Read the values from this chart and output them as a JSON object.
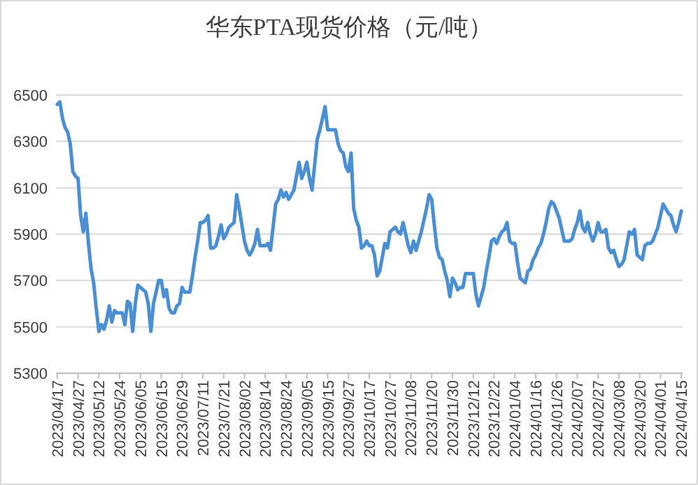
{
  "chart_data": {
    "type": "line",
    "title": "华东PTA现货价格（元/吨）",
    "ylim": [
      5300,
      6500
    ],
    "yticks": [
      5300,
      5500,
      5700,
      5900,
      6100,
      6300,
      6500
    ],
    "grid": "y",
    "color": "#4a8fd4",
    "categories": [
      "2023/04/17",
      null,
      null,
      null,
      null,
      null,
      null,
      null,
      "2023/04/27",
      null,
      null,
      null,
      null,
      null,
      null,
      null,
      "2023/05/12",
      null,
      null,
      null,
      null,
      null,
      null,
      null,
      "2023/05/24",
      null,
      null,
      null,
      null,
      null,
      null,
      null,
      "2023/06/05",
      null,
      null,
      null,
      null,
      null,
      null,
      null,
      "2023/06/15",
      null,
      null,
      null,
      null,
      null,
      null,
      null,
      "2023/06/29",
      null,
      null,
      null,
      null,
      null,
      null,
      null,
      "2023/07/11",
      null,
      null,
      null,
      null,
      null,
      null,
      null,
      "2023/07/21",
      null,
      null,
      null,
      null,
      null,
      null,
      null,
      "2023/08/02",
      null,
      null,
      null,
      null,
      null,
      null,
      null,
      "2023/08/14",
      null,
      null,
      null,
      null,
      null,
      null,
      null,
      "2023/08/24",
      null,
      null,
      null,
      null,
      null,
      null,
      null,
      "2023/09/05",
      null,
      null,
      null,
      null,
      null,
      null,
      null,
      "2023/09/15",
      null,
      null,
      null,
      null,
      null,
      null,
      null,
      "2023/09/27",
      null,
      null,
      null,
      null,
      null,
      null,
      null,
      "2023/10/17",
      null,
      null,
      null,
      null,
      null,
      null,
      null,
      "2023/10/27",
      null,
      null,
      null,
      null,
      null,
      null,
      null,
      "2023/11/08",
      null,
      null,
      null,
      null,
      null,
      null,
      null,
      "2023/11/20",
      null,
      null,
      null,
      null,
      null,
      null,
      null,
      "2023/11/30",
      null,
      null,
      null,
      null,
      null,
      null,
      null,
      "2023/12/12",
      null,
      null,
      null,
      null,
      null,
      null,
      null,
      "2023/12/22",
      null,
      null,
      null,
      null,
      null,
      null,
      null,
      "2024/01/04",
      null,
      null,
      null,
      null,
      null,
      null,
      null,
      "2024/01/16",
      null,
      null,
      null,
      null,
      null,
      null,
      null,
      "2024/01/26",
      null,
      null,
      null,
      null,
      null,
      null,
      null,
      "2024/02/07",
      null,
      null,
      null,
      null,
      null,
      null,
      null,
      "2024/02/27",
      null,
      null,
      null,
      null,
      null,
      null,
      null,
      "2024/03/08",
      null,
      null,
      null,
      null,
      null,
      null,
      null,
      "2024/03/20",
      null,
      null,
      null,
      null,
      null,
      null,
      null,
      "2024/04/01",
      null,
      null,
      null,
      null,
      null,
      null,
      null,
      "2024/04/15"
    ],
    "values": [
      6460,
      6470,
      6400,
      6360,
      6340,
      6290,
      6170,
      6150,
      6140,
      5980,
      5910,
      5990,
      5860,
      5750,
      5690,
      5580,
      5480,
      5510,
      5490,
      5530,
      5590,
      5520,
      5570,
      5560,
      5560,
      5560,
      5510,
      5610,
      5600,
      5480,
      5600,
      5680,
      5670,
      5660,
      5650,
      5600,
      5480,
      5600,
      5650,
      5700,
      5700,
      5630,
      5660,
      5580,
      5560,
      5560,
      5590,
      5600,
      5670,
      5650,
      5650,
      5650,
      5720,
      5800,
      5870,
      5950,
      5950,
      5960,
      5980,
      5840,
      5840,
      5850,
      5890,
      5940,
      5880,
      5900,
      5930,
      5940,
      5950,
      6070,
      6010,
      5940,
      5870,
      5830,
      5810,
      5830,
      5860,
      5920,
      5850,
      5850,
      5850,
      5860,
      5830,
      5930,
      6030,
      6050,
      6090,
      6060,
      6080,
      6050,
      6070,
      6090,
      6150,
      6210,
      6140,
      6170,
      6210,
      6140,
      6090,
      6200,
      6310,
      6350,
      6400,
      6450,
      6350,
      6350,
      6350,
      6350,
      6290,
      6260,
      6250,
      6190,
      6170,
      6250,
      6010,
      5960,
      5930,
      5840,
      5850,
      5870,
      5850,
      5850,
      5810,
      5720,
      5740,
      5800,
      5860,
      5840,
      5910,
      5920,
      5930,
      5910,
      5900,
      5950,
      5900,
      5850,
      5820,
      5870,
      5830,
      5870,
      5910,
      5960,
      6010,
      6070,
      6050,
      5940,
      5840,
      5800,
      5790,
      5740,
      5700,
      5630,
      5710,
      5690,
      5660,
      5670,
      5670,
      5730,
      5730,
      5730,
      5730,
      5640,
      5590,
      5630,
      5670,
      5740,
      5800,
      5870,
      5880,
      5860,
      5890,
      5910,
      5920,
      5950,
      5870,
      5860,
      5860,
      5780,
      5710,
      5700,
      5690,
      5740,
      5750,
      5790,
      5810,
      5840,
      5860,
      5900,
      5950,
      6010,
      6040,
      6030,
      6000,
      5970,
      5920,
      5870,
      5870,
      5870,
      5880,
      5920,
      5950,
      6000,
      5930,
      5910,
      5950,
      5900,
      5870,
      5900,
      5950,
      5910,
      5910,
      5920,
      5840,
      5820,
      5830,
      5790,
      5760,
      5770,
      5790,
      5850,
      5910,
      5900,
      5920,
      5810,
      5800,
      5790,
      5850,
      5860,
      5860,
      5870,
      5900,
      5930,
      5980,
      6030,
      6010,
      5990,
      5980,
      5940,
      5910,
      5950,
      6000
    ]
  }
}
